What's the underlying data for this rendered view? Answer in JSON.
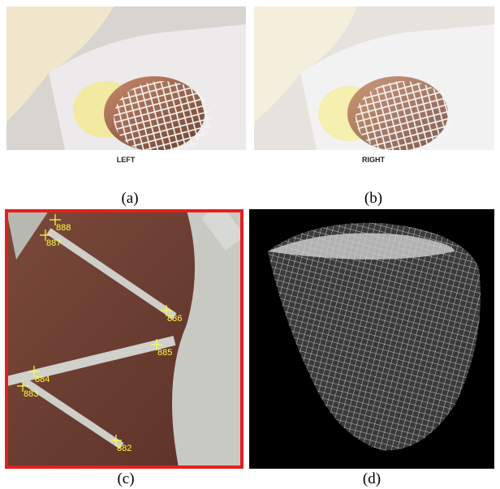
{
  "panels": [
    {
      "caption": "(a)",
      "image_label": "LEFT"
    },
    {
      "caption": "(b)",
      "image_label": "RIGHT"
    },
    {
      "caption": "(c)",
      "markers": [
        "888",
        "887",
        "886",
        "885",
        "884",
        "883",
        "882"
      ]
    },
    {
      "caption": "(d)"
    }
  ]
}
